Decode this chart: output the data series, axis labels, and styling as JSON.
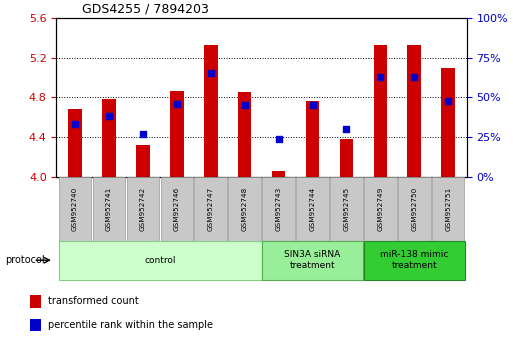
{
  "title": "GDS4255 / 7894203",
  "samples": [
    "GSM952740",
    "GSM952741",
    "GSM952742",
    "GSM952746",
    "GSM952747",
    "GSM952748",
    "GSM952743",
    "GSM952744",
    "GSM952745",
    "GSM952749",
    "GSM952750",
    "GSM952751"
  ],
  "transformed_count": [
    4.68,
    4.78,
    4.32,
    4.86,
    5.33,
    4.85,
    4.06,
    4.76,
    4.38,
    5.33,
    5.33,
    5.09
  ],
  "percentile_rank": [
    33,
    38,
    27,
    46,
    65,
    45,
    24,
    45,
    30,
    63,
    63,
    48
  ],
  "ylim_left": [
    4.0,
    5.6
  ],
  "ylim_right": [
    0,
    100
  ],
  "yticks_left": [
    4.0,
    4.4,
    4.8,
    5.2,
    5.6
  ],
  "yticks_right": [
    0,
    25,
    50,
    75,
    100
  ],
  "bar_color": "#cc0000",
  "dot_color": "#0000cc",
  "groups": [
    {
      "label": "control",
      "start": 0,
      "end": 6,
      "color": "#ccffcc",
      "border": "#88cc88"
    },
    {
      "label": "SIN3A siRNA\ntreatment",
      "start": 6,
      "end": 9,
      "color": "#99ee99",
      "border": "#55aa55"
    },
    {
      "label": "miR-138 mimic\ntreatment",
      "start": 9,
      "end": 12,
      "color": "#33cc33",
      "border": "#228822"
    }
  ],
  "bar_width": 0.4,
  "label_tc": "transformed count",
  "label_pr": "percentile rank within the sample",
  "bar_color_legend": "#cc0000",
  "dot_color_legend": "#0000cc"
}
